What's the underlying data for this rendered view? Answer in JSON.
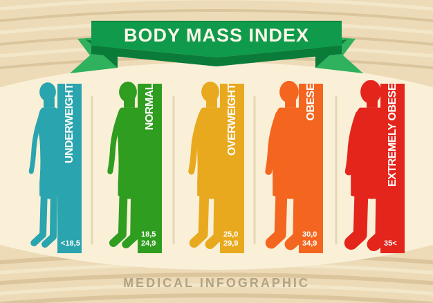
{
  "ribbon": {
    "title": "BODY MASS INDEX"
  },
  "footer": {
    "label": "MEDICAL INFOGRAPHIC"
  },
  "chart_data": {
    "type": "table",
    "title": "BODY MASS INDEX",
    "subtitle": "MEDICAL INFOGRAPHIC",
    "legend_position": "in-bar vertical labels, ranges at bar bottom",
    "categories": [
      {
        "label": "UNDERWEIGHT",
        "range_text": "<18,5",
        "color": "#2AA4AE"
      },
      {
        "label": "NORMAL",
        "range_text": "18,5\n24,9",
        "color": "#2F9D1F"
      },
      {
        "label": "OVERWEIGHT",
        "range_text": "25,0\n29,9",
        "color": "#E9A91E"
      },
      {
        "label": "OBESE",
        "range_text": "30,0\n34,9",
        "color": "#F4661F"
      },
      {
        "label": "EXTREMELY OBESE",
        "range_text": "35<",
        "color": "#E3251C"
      }
    ]
  },
  "colors": {
    "background_tan": "#EDDBB8",
    "grain_dark": "#DBC59D",
    "grain_light": "#F3E7C9",
    "panel_cream": "#FAF0D8",
    "ribbon_green": "#0F9B4B",
    "ribbon_dark": "#0A7B39",
    "ribbon_tail": "#2FB15E",
    "separator": "#E6D6B3",
    "footer_text": "#B3A284",
    "title_text": "#FDF6E8"
  }
}
